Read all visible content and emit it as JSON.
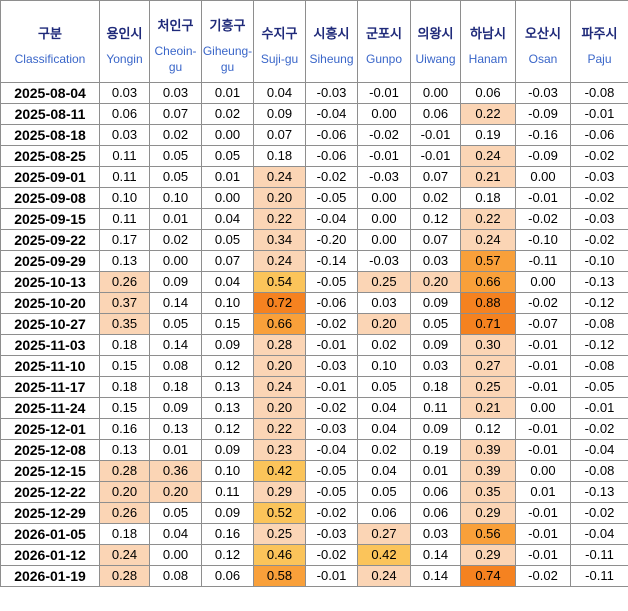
{
  "columns": [
    {
      "ko": "구분",
      "en": "Classification"
    },
    {
      "ko": "용인시",
      "en": "Yongin"
    },
    {
      "ko": "처인구",
      "en": "Cheoin-gu"
    },
    {
      "ko": "기흥구",
      "en": "Giheung-gu"
    },
    {
      "ko": "수지구",
      "en": "Suji-gu"
    },
    {
      "ko": "시흥시",
      "en": "Siheung"
    },
    {
      "ko": "군포시",
      "en": "Gunpo"
    },
    {
      "ko": "의왕시",
      "en": "Uiwang"
    },
    {
      "ko": "하남시",
      "en": "Hanam"
    },
    {
      "ko": "오산시",
      "en": "Osan"
    },
    {
      "ko": "파주시",
      "en": "Paju"
    }
  ],
  "rows": [
    {
      "date": "2025-08-04",
      "values": [
        "0.03",
        "0.03",
        "0.01",
        "0.04",
        "-0.03",
        "-0.01",
        "0.00",
        "0.06",
        "-0.03",
        "-0.08"
      ]
    },
    {
      "date": "2025-08-11",
      "values": [
        "0.06",
        "0.07",
        "0.02",
        "0.09",
        "-0.04",
        "0.00",
        "0.06",
        "0.22",
        "-0.09",
        "-0.01"
      ]
    },
    {
      "date": "2025-08-18",
      "values": [
        "0.03",
        "0.02",
        "0.00",
        "0.07",
        "-0.06",
        "-0.02",
        "-0.01",
        "0.19",
        "-0.16",
        "-0.06"
      ]
    },
    {
      "date": "2025-08-25",
      "values": [
        "0.11",
        "0.05",
        "0.05",
        "0.18",
        "-0.06",
        "-0.01",
        "-0.01",
        "0.24",
        "-0.09",
        "-0.02"
      ]
    },
    {
      "date": "2025-09-01",
      "values": [
        "0.11",
        "0.05",
        "0.01",
        "0.24",
        "-0.02",
        "-0.03",
        "0.07",
        "0.21",
        "0.00",
        "-0.03"
      ]
    },
    {
      "date": "2025-09-08",
      "values": [
        "0.10",
        "0.10",
        "0.00",
        "0.20",
        "-0.05",
        "0.00",
        "0.02",
        "0.18",
        "-0.01",
        "-0.02"
      ]
    },
    {
      "date": "2025-09-15",
      "values": [
        "0.11",
        "0.01",
        "0.04",
        "0.22",
        "-0.04",
        "0.00",
        "0.12",
        "0.22",
        "-0.02",
        "-0.03"
      ]
    },
    {
      "date": "2025-09-22",
      "values": [
        "0.17",
        "0.02",
        "0.05",
        "0.34",
        "-0.20",
        "0.00",
        "0.07",
        "0.24",
        "-0.10",
        "-0.02"
      ]
    },
    {
      "date": "2025-09-29",
      "values": [
        "0.13",
        "0.00",
        "0.07",
        "0.24",
        "-0.14",
        "-0.03",
        "0.03",
        "0.57",
        "-0.11",
        "-0.10"
      ]
    },
    {
      "date": "2025-10-13",
      "values": [
        "0.26",
        "0.09",
        "0.04",
        "0.54",
        "-0.05",
        "0.25",
        "0.20",
        "0.66",
        "0.00",
        "-0.13"
      ]
    },
    {
      "date": "2025-10-20",
      "values": [
        "0.37",
        "0.14",
        "0.10",
        "0.72",
        "-0.06",
        "0.03",
        "0.09",
        "0.88",
        "-0.02",
        "-0.12"
      ]
    },
    {
      "date": "2025-10-27",
      "values": [
        "0.35",
        "0.05",
        "0.15",
        "0.66",
        "-0.02",
        "0.20",
        "0.05",
        "0.71",
        "-0.07",
        "-0.08"
      ]
    },
    {
      "date": "2025-11-03",
      "values": [
        "0.18",
        "0.14",
        "0.09",
        "0.28",
        "-0.01",
        "0.02",
        "0.09",
        "0.30",
        "-0.01",
        "-0.12"
      ]
    },
    {
      "date": "2025-11-10",
      "values": [
        "0.15",
        "0.08",
        "0.12",
        "0.20",
        "-0.03",
        "0.10",
        "0.03",
        "0.27",
        "-0.01",
        "-0.08"
      ]
    },
    {
      "date": "2025-11-17",
      "values": [
        "0.18",
        "0.18",
        "0.13",
        "0.24",
        "-0.01",
        "0.05",
        "0.18",
        "0.25",
        "-0.01",
        "-0.05"
      ]
    },
    {
      "date": "2025-11-24",
      "values": [
        "0.15",
        "0.09",
        "0.13",
        "0.20",
        "-0.02",
        "0.04",
        "0.11",
        "0.21",
        "0.00",
        "-0.01"
      ]
    },
    {
      "date": "2025-12-01",
      "values": [
        "0.16",
        "0.13",
        "0.12",
        "0.22",
        "-0.03",
        "0.04",
        "0.09",
        "0.12",
        "-0.01",
        "-0.02"
      ]
    },
    {
      "date": "2025-12-08",
      "values": [
        "0.13",
        "0.01",
        "0.09",
        "0.23",
        "-0.04",
        "0.02",
        "0.19",
        "0.39",
        "-0.01",
        "-0.04"
      ]
    },
    {
      "date": "2025-12-15",
      "values": [
        "0.28",
        "0.36",
        "0.10",
        "0.42",
        "-0.05",
        "0.04",
        "0.01",
        "0.39",
        "0.00",
        "-0.08"
      ]
    },
    {
      "date": "2025-12-22",
      "values": [
        "0.20",
        "0.20",
        "0.11",
        "0.29",
        "-0.05",
        "0.05",
        "0.06",
        "0.35",
        "0.01",
        "-0.13"
      ]
    },
    {
      "date": "2025-12-29",
      "values": [
        "0.26",
        "0.05",
        "0.09",
        "0.52",
        "-0.02",
        "0.06",
        "0.06",
        "0.29",
        "-0.01",
        "-0.02"
      ]
    },
    {
      "date": "2026-01-05",
      "values": [
        "0.18",
        "0.04",
        "0.16",
        "0.25",
        "-0.03",
        "0.27",
        "0.03",
        "0.56",
        "-0.01",
        "-0.04"
      ]
    },
    {
      "date": "2026-01-12",
      "values": [
        "0.24",
        "0.00",
        "0.12",
        "0.46",
        "-0.02",
        "0.42",
        "0.14",
        "0.29",
        "-0.01",
        "-0.11"
      ]
    },
    {
      "date": "2026-01-19",
      "values": [
        "0.28",
        "0.08",
        "0.06",
        "0.58",
        "-0.01",
        "0.24",
        "0.14",
        "0.74",
        "-0.02",
        "-0.11"
      ]
    }
  ],
  "heat_colors": {
    "light": "#fbd5b5",
    "mid": "#fbc45a",
    "strong": "#f9a03a",
    "hot": "#f58220"
  }
}
